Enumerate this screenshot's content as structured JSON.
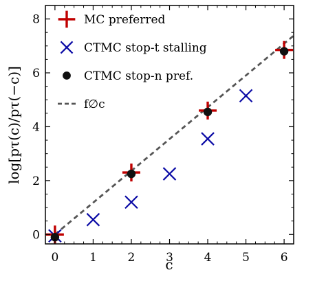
{
  "chart_data": {
    "type": "scatter",
    "xlabel": "c",
    "ylabel": "log[pτ(c)/pτ(−c)]",
    "xlim": [
      -0.25,
      6.25
    ],
    "ylim": [
      -0.35,
      8.5
    ],
    "xticks": [
      0,
      1,
      2,
      3,
      4,
      5,
      6
    ],
    "yticks": [
      0,
      2,
      4,
      6,
      8
    ],
    "grid": false,
    "legend": "top-left",
    "series": [
      {
        "name": "MC preferred",
        "marker": "plus",
        "color": "#c00000",
        "x": [
          0,
          2,
          4,
          6
        ],
        "y": [
          0.0,
          2.3,
          4.6,
          6.85
        ]
      },
      {
        "name": "CTMC stop-t stalling",
        "marker": "x",
        "color": "#0a0aa5",
        "x": [
          0,
          1,
          2,
          3,
          4,
          5
        ],
        "y": [
          -0.05,
          0.55,
          1.2,
          2.25,
          3.55,
          5.15
        ]
      },
      {
        "name": "CTMC stop-n pref.",
        "marker": "circle",
        "color": "#111111",
        "x": [
          0,
          2,
          4,
          6
        ],
        "y": [
          -0.1,
          2.25,
          4.55,
          6.8
        ]
      },
      {
        "name": "f∅c",
        "marker": "dashed-line",
        "color": "#555555",
        "x": [
          0,
          6.25
        ],
        "y": [
          0,
          7.38
        ]
      }
    ]
  }
}
